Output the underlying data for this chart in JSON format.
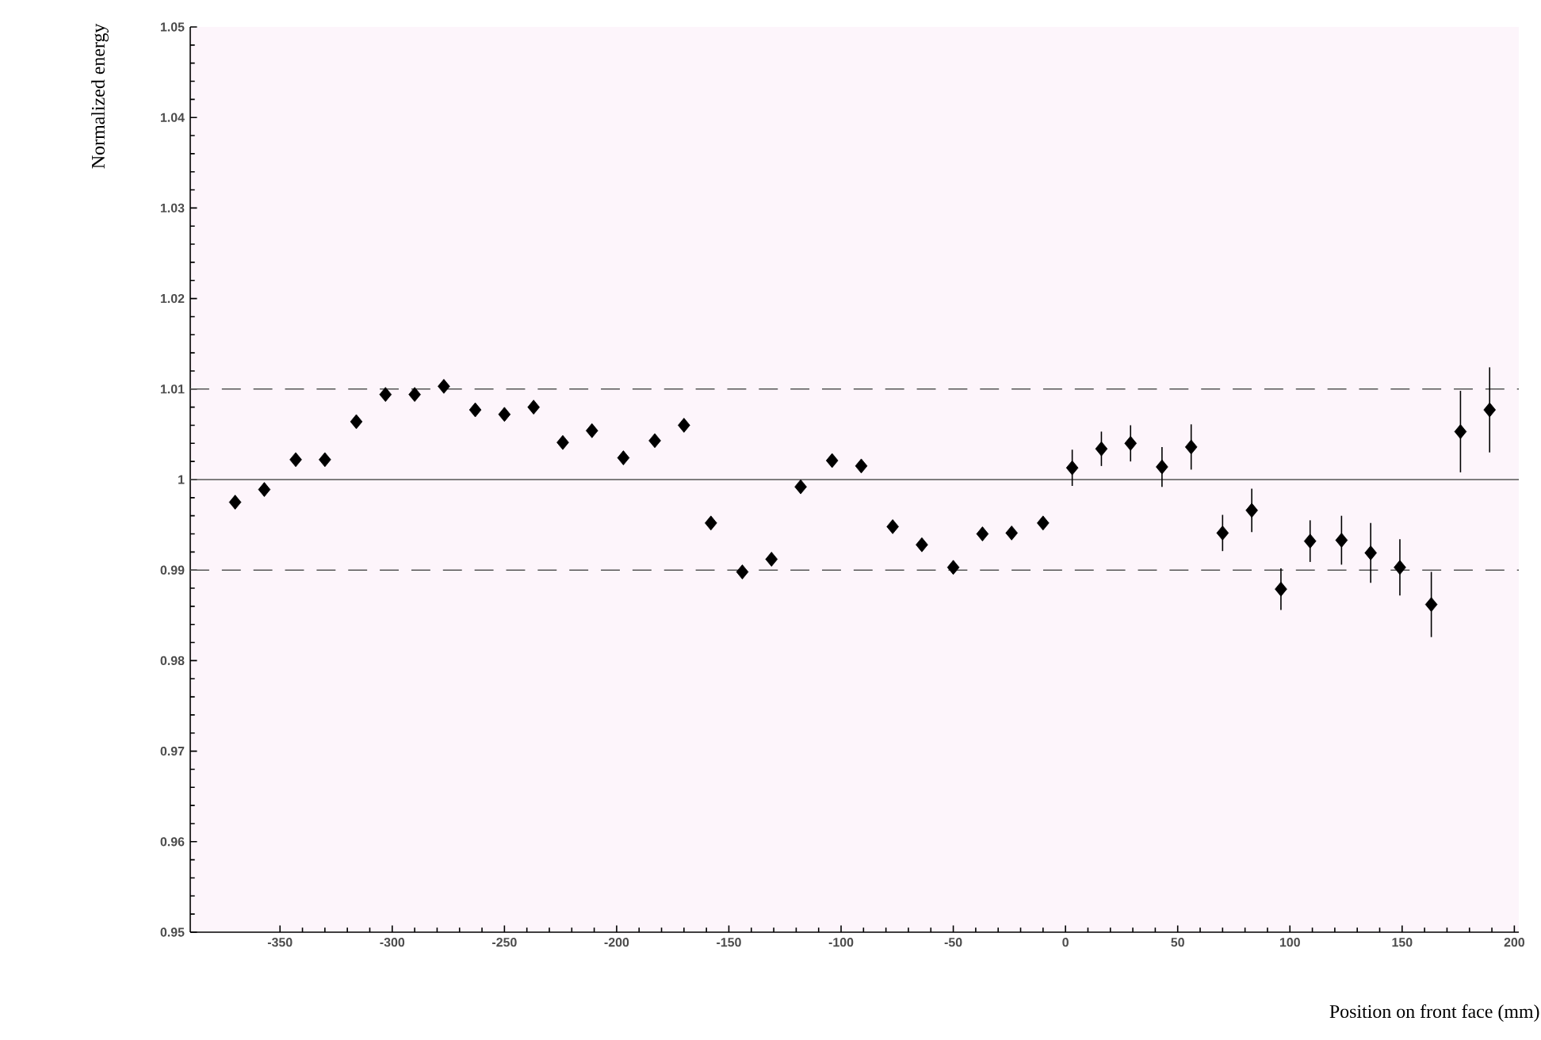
{
  "chart_data": {
    "type": "scatter",
    "xlabel": "Position on front face (mm)",
    "ylabel": "Normalized energy",
    "xlim": [
      -390,
      202
    ],
    "ylim": [
      0.95,
      1.05
    ],
    "xticks": [
      -350,
      -300,
      -250,
      -200,
      -150,
      -100,
      -50,
      0,
      50,
      100,
      150,
      200
    ],
    "yticks": [
      0.95,
      0.96,
      0.97,
      0.98,
      0.99,
      1,
      1.01,
      1.02,
      1.03,
      1.04,
      1.05
    ],
    "marker": "diamond",
    "series": [
      {
        "color": "#000000",
        "x": [
          -370,
          -357,
          -343,
          -330,
          -316,
          -303,
          -290,
          -277,
          -263,
          -250,
          -237,
          -224,
          -211,
          -197,
          -183,
          -170,
          -158,
          -144,
          -131,
          -118,
          -104,
          -91,
          -77,
          -64,
          -50,
          -37,
          -24,
          -10,
          3,
          16,
          29,
          43,
          56,
          70,
          83,
          96,
          109,
          123,
          136,
          149,
          163,
          176,
          189
        ],
        "values": [
          0.9975,
          0.9989,
          1.0022,
          1.0022,
          1.0064,
          1.0094,
          1.0094,
          1.0103,
          1.0077,
          1.0072,
          1.008,
          1.0041,
          1.0054,
          1.0024,
          1.0043,
          1.006,
          0.9952,
          0.9898,
          0.9912,
          0.9992,
          1.0021,
          1.0015,
          0.9948,
          0.9928,
          0.9903,
          0.994,
          0.9941,
          0.9952,
          1.0013,
          1.0034,
          1.004,
          1.0014,
          1.0036,
          0.9941,
          0.9966,
          0.9879,
          0.9932,
          0.9933,
          0.9919,
          0.9903,
          0.9862,
          1.0053,
          1.0077
        ],
        "errors": [
          0.0007,
          0.0007,
          0.0007,
          0.0007,
          0.0007,
          0.0007,
          0.0007,
          0.0007,
          0.0007,
          0.0007,
          0.0007,
          0.0007,
          0.0007,
          0.0007,
          0.0007,
          0.0007,
          0.0007,
          0.0007,
          0.0007,
          0.0007,
          0.0007,
          0.0007,
          0.0007,
          0.0007,
          0.0007,
          0.0007,
          0.0007,
          0.0007,
          0.002,
          0.0019,
          0.002,
          0.0022,
          0.0025,
          0.002,
          0.0024,
          0.0023,
          0.0023,
          0.0027,
          0.0033,
          0.0031,
          0.0036,
          0.0045,
          0.0047
        ]
      }
    ],
    "ref_lines": [
      {
        "axis": "y",
        "value": 1,
        "color": "#555555",
        "line_style": "solid"
      },
      {
        "axis": "y",
        "value": 1.01,
        "color": "#555555",
        "line_style": "dashed"
      },
      {
        "axis": "y",
        "value": 0.99,
        "color": "#555555",
        "line_style": "dashed"
      }
    ]
  }
}
